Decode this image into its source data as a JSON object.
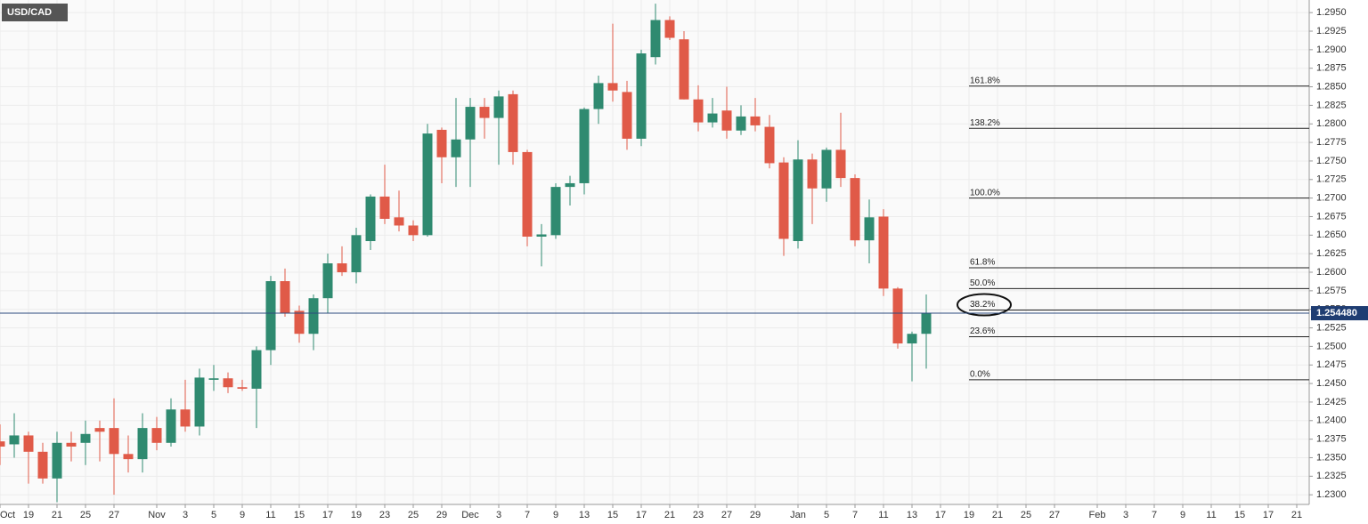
{
  "chart_data": {
    "type": "candlestick",
    "title": "USD/CAD",
    "up_color": "#2f8a70",
    "down_color": "#e05a48",
    "grid": true,
    "x": [
      0,
      1,
      2,
      3,
      4,
      5,
      6,
      7,
      8,
      9,
      10,
      11,
      12,
      13,
      14,
      15,
      16,
      17,
      18,
      19,
      20,
      21,
      22,
      23,
      24,
      25,
      26,
      27,
      28,
      29,
      30,
      31,
      32,
      33,
      34,
      35,
      36,
      37,
      38,
      39,
      40,
      41,
      42,
      43,
      44,
      45,
      46,
      47,
      48,
      49,
      50,
      51,
      52,
      53,
      54,
      55,
      56,
      57,
      58,
      59,
      60,
      61,
      62,
      63,
      64,
      65
    ],
    "open": [
      1.2372,
      1.2368,
      1.238,
      1.2358,
      1.2322,
      1.237,
      1.237,
      1.239,
      1.239,
      1.2355,
      1.2348,
      1.239,
      1.237,
      1.2415,
      1.2392,
      1.2455,
      1.2457,
      1.2445,
      1.2443,
      1.2495,
      1.2588,
      1.2548,
      1.2517,
      1.2565,
      1.2612,
      1.26,
      1.2642,
      1.2702,
      1.2674,
      1.2663,
      1.265,
      1.2792,
      1.2755,
      1.2779,
      1.2823,
      1.2808,
      1.284,
      1.2762,
      1.2648,
      1.265,
      1.2715,
      1.272,
      1.282,
      1.2855,
      1.2843,
      1.278,
      1.289,
      1.294,
      1.2914,
      1.2833,
      1.2802,
      1.2818,
      1.2791,
      1.281,
      1.2796,
      1.2748,
      1.2642,
      1.2752,
      1.2713,
      1.2765,
      1.2727,
      1.2643,
      1.2675,
      1.2578,
      1.2504,
      1.2517
    ],
    "high": [
      1.2395,
      1.241,
      1.2385,
      1.237,
      1.2385,
      1.2385,
      1.24,
      1.24,
      1.243,
      1.238,
      1.241,
      1.2405,
      1.243,
      1.2455,
      1.247,
      1.2475,
      1.2465,
      1.2455,
      1.25,
      1.2595,
      1.2605,
      1.2555,
      1.257,
      1.2625,
      1.2635,
      1.266,
      1.2705,
      1.2745,
      1.271,
      1.267,
      1.28,
      1.2795,
      1.2835,
      1.2835,
      1.2835,
      1.2845,
      1.2845,
      1.2765,
      1.2665,
      1.272,
      1.273,
      1.2822,
      1.2865,
      1.2935,
      1.2858,
      1.29,
      1.2962,
      1.2945,
      1.2925,
      1.2852,
      1.2835,
      1.285,
      1.2825,
      1.2835,
      1.2812,
      1.2755,
      1.2778,
      1.276,
      1.2768,
      1.2815,
      1.2732,
      1.2698,
      1.2685,
      1.258,
      1.252,
      1.257
    ],
    "low": [
      1.234,
      1.235,
      1.2315,
      1.2315,
      1.229,
      1.2345,
      1.234,
      1.2345,
      1.23,
      1.233,
      1.233,
      1.236,
      1.2365,
      1.2385,
      1.238,
      1.244,
      1.2437,
      1.244,
      1.239,
      1.2475,
      1.254,
      1.2505,
      1.2495,
      1.2545,
      1.2595,
      1.2585,
      1.263,
      1.2665,
      1.2655,
      1.2642,
      1.2648,
      1.272,
      1.2715,
      1.2715,
      1.278,
      1.2745,
      1.2745,
      1.2635,
      1.2608,
      1.2645,
      1.269,
      1.2705,
      1.28,
      1.283,
      1.2765,
      1.277,
      1.288,
      1.2913,
      1.2833,
      1.279,
      1.2795,
      1.278,
      1.2785,
      1.279,
      1.274,
      1.2622,
      1.2632,
      1.2665,
      1.2695,
      1.2715,
      1.2635,
      1.2612,
      1.2568,
      1.2497,
      1.2453,
      1.247
    ],
    "close": [
      1.2365,
      1.238,
      1.2358,
      1.2322,
      1.237,
      1.2365,
      1.2382,
      1.2385,
      1.2355,
      1.2348,
      1.239,
      1.237,
      1.2415,
      1.2392,
      1.2458,
      1.2457,
      1.2445,
      1.2443,
      1.2495,
      1.2588,
      1.2545,
      1.2517,
      1.2565,
      1.2612,
      1.26,
      1.265,
      1.2702,
      1.2672,
      1.2663,
      1.265,
      1.2787,
      1.2755,
      1.2779,
      1.2823,
      1.2808,
      1.2837,
      1.2762,
      1.2648,
      1.2651,
      1.2715,
      1.272,
      1.282,
      1.2855,
      1.2845,
      1.278,
      1.2895,
      1.294,
      1.2916,
      1.2833,
      1.2802,
      1.2814,
      1.2791,
      1.281,
      1.2798,
      1.2747,
      1.2645,
      1.2752,
      1.2713,
      1.2765,
      1.2727,
      1.2643,
      1.2674,
      1.2578,
      1.2504,
      1.2517,
      1.2545
    ],
    "xlim": [
      0,
      91.875
    ],
    "xticks": [
      {
        "value": 0,
        "label": "Oct"
      },
      {
        "value": 2,
        "label": "19"
      },
      {
        "value": 4,
        "label": "21"
      },
      {
        "value": 6,
        "label": "25"
      },
      {
        "value": 8,
        "label": "27"
      },
      {
        "value": 11,
        "label": "Nov"
      },
      {
        "value": 13,
        "label": "3"
      },
      {
        "value": 15,
        "label": "5"
      },
      {
        "value": 17,
        "label": "9"
      },
      {
        "value": 19,
        "label": "11"
      },
      {
        "value": 21,
        "label": "15"
      },
      {
        "value": 23,
        "label": "17"
      },
      {
        "value": 25,
        "label": "19"
      },
      {
        "value": 27,
        "label": "23"
      },
      {
        "value": 29,
        "label": "25"
      },
      {
        "value": 31,
        "label": "29"
      },
      {
        "value": 33,
        "label": "Dec"
      },
      {
        "value": 35,
        "label": "3"
      },
      {
        "value": 37,
        "label": "7"
      },
      {
        "value": 39,
        "label": "9"
      },
      {
        "value": 41,
        "label": "13"
      },
      {
        "value": 43,
        "label": "15"
      },
      {
        "value": 45,
        "label": "17"
      },
      {
        "value": 47,
        "label": "21"
      },
      {
        "value": 49,
        "label": "23"
      },
      {
        "value": 51,
        "label": "27"
      },
      {
        "value": 53,
        "label": "29"
      },
      {
        "value": 56,
        "label": "Jan"
      },
      {
        "value": 58,
        "label": "5"
      },
      {
        "value": 60,
        "label": "7"
      },
      {
        "value": 62,
        "label": "11"
      },
      {
        "value": 64,
        "label": "13"
      },
      {
        "value": 66,
        "label": "17"
      },
      {
        "value": 68,
        "label": "19"
      },
      {
        "value": 70,
        "label": "21"
      },
      {
        "value": 72,
        "label": "25"
      },
      {
        "value": 74,
        "label": "27"
      },
      {
        "value": 77,
        "label": "Feb"
      },
      {
        "value": 79,
        "label": "3"
      },
      {
        "value": 81,
        "label": "7"
      },
      {
        "value": 83,
        "label": "9"
      },
      {
        "value": 85,
        "label": "11"
      },
      {
        "value": 87,
        "label": "15"
      },
      {
        "value": 89,
        "label": "17"
      },
      {
        "value": 91,
        "label": "21"
      }
    ],
    "ylim": [
      1.2287,
      1.2967
    ],
    "yticks": [
      {
        "value": 1.23,
        "label": "1.2300"
      },
      {
        "value": 1.2325,
        "label": "1.2325"
      },
      {
        "value": 1.235,
        "label": "1.2350"
      },
      {
        "value": 1.2375,
        "label": "1.2375"
      },
      {
        "value": 1.24,
        "label": "1.2400"
      },
      {
        "value": 1.2425,
        "label": "1.2425"
      },
      {
        "value": 1.245,
        "label": "1.2450"
      },
      {
        "value": 1.2475,
        "label": "1.2475"
      },
      {
        "value": 1.25,
        "label": "1.2500"
      },
      {
        "value": 1.2525,
        "label": "1.2525"
      },
      {
        "value": 1.255,
        "label": "1.2550"
      },
      {
        "value": 1.2575,
        "label": "1.2575"
      },
      {
        "value": 1.26,
        "label": "1.2600"
      },
      {
        "value": 1.2625,
        "label": "1.2625"
      },
      {
        "value": 1.265,
        "label": "1.2650"
      },
      {
        "value": 1.2675,
        "label": "1.2675"
      },
      {
        "value": 1.27,
        "label": "1.2700"
      },
      {
        "value": 1.2725,
        "label": "1.2725"
      },
      {
        "value": 1.275,
        "label": "1.2750"
      },
      {
        "value": 1.2775,
        "label": "1.2775"
      },
      {
        "value": 1.28,
        "label": "1.2800"
      },
      {
        "value": 1.2825,
        "label": "1.2825"
      },
      {
        "value": 1.285,
        "label": "1.2850"
      },
      {
        "value": 1.2875,
        "label": "1.2875"
      },
      {
        "value": 1.29,
        "label": "1.2900"
      },
      {
        "value": 1.2925,
        "label": "1.2925"
      },
      {
        "value": 1.295,
        "label": "1.2950"
      }
    ],
    "fib_start_x": 68,
    "fib_levels": [
      {
        "label": "161.8%",
        "value": 1.2851
      },
      {
        "label": "138.2%",
        "value": 1.2794
      },
      {
        "label": "100.0%",
        "value": 1.27
      },
      {
        "label": "61.8%",
        "value": 1.2606
      },
      {
        "label": "50.0%",
        "value": 1.2578
      },
      {
        "label": "38.2%",
        "value": 1.2549
      },
      {
        "label": "23.6%",
        "value": 1.2513
      },
      {
        "label": "0.0%",
        "value": 1.2455
      }
    ],
    "last_price": {
      "value": 1.25448,
      "label": "1.254480"
    }
  }
}
